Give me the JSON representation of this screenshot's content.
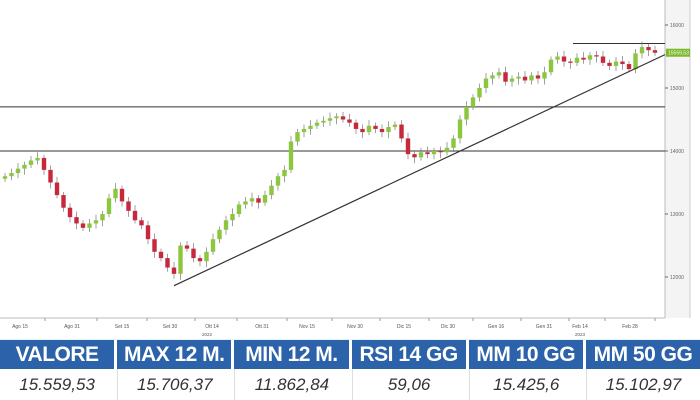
{
  "chart_data": {
    "type": "candlestick",
    "y_ticks": [
      16000,
      15000,
      14000,
      13000,
      12000
    ],
    "ylim": [
      11700,
      16300
    ],
    "x_ticks": [
      "Ago 15",
      "Ago 31",
      "Set 15",
      "Set 30",
      "Ott 14",
      "Ott 31",
      "Nov 15",
      "Nov 30",
      "Dic 15",
      "Dic 30",
      "Gen 16",
      "Gen 31",
      "Feb 14",
      "Feb 28"
    ],
    "years": [
      "2022",
      "2023"
    ],
    "last_price_label": "15559,53",
    "closes": [
      13600,
      13650,
      13720,
      13780,
      13850,
      13890,
      13700,
      13500,
      13300,
      13100,
      12950,
      12850,
      12780,
      12850,
      12900,
      13000,
      13250,
      13400,
      13200,
      13050,
      12900,
      12820,
      12600,
      12400,
      12300,
      12150,
      12050,
      12500,
      12450,
      12300,
      12250,
      12400,
      12600,
      12750,
      12900,
      13000,
      13150,
      13200,
      13250,
      13180,
      13300,
      13450,
      13600,
      13700,
      14150,
      14300,
      14350,
      14400,
      14450,
      14480,
      14520,
      14550,
      14500,
      14450,
      14350,
      14300,
      14400,
      14350,
      14300,
      14380,
      14420,
      14200,
      13950,
      13900,
      13980,
      13950,
      14000,
      13980,
      14050,
      14200,
      14500,
      14700,
      14850,
      15000,
      15150,
      15200,
      15250,
      15100,
      15150,
      15180,
      15120,
      15200,
      15150,
      15250,
      15450,
      15500,
      15420,
      15400,
      15480,
      15450,
      15520,
      15500,
      15400,
      15350,
      15420,
      15380,
      15300,
      15550,
      15650,
      15600,
      15560
    ],
    "horizontal_levels": [
      15706,
      14700,
      14000
    ],
    "trendline": {
      "start": 11862,
      "end": 15530
    },
    "colors": {
      "up": "#8cc63f",
      "down": "#c8283c",
      "line": "#333333",
      "tag": "#7ab929"
    }
  },
  "table": {
    "headers": [
      "VALORE",
      "MAX 12 M.",
      "MIN 12 M.",
      "RSI 14 GG",
      "MM 10 GG",
      "MM 50 GG"
    ],
    "values": [
      "15.559,53",
      "15.706,37",
      "11.862,84",
      "59,06",
      "15.425,6",
      "15.102,97"
    ]
  }
}
